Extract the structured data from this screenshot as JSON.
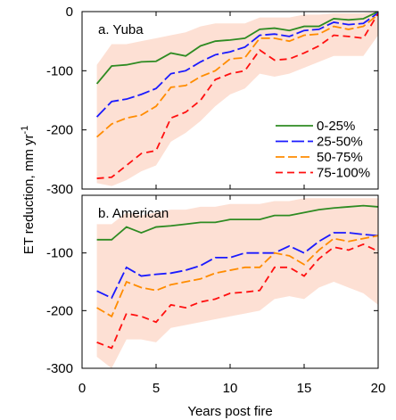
{
  "ylabel": "ET reduction, mm yr",
  "ylabel_exponent": "-1",
  "chart_data": [
    {
      "type": "line",
      "title": "a. Yuba",
      "x": [
        1,
        2,
        3,
        4,
        5,
        6,
        7,
        8,
        9,
        10,
        11,
        12,
        13,
        14,
        15,
        16,
        17,
        18,
        19,
        20
      ],
      "xlim": [
        0,
        20
      ],
      "ylim": [
        -300,
        0
      ],
      "yticks": [
        0,
        -100,
        -200,
        -300
      ],
      "band": {
        "color": "#fde0d4",
        "lower": [
          -290,
          -295,
          -285,
          -270,
          -260,
          -220,
          -205,
          -185,
          -160,
          -140,
          -130,
          -105,
          -110,
          -105,
          -95,
          -85,
          -75,
          -75,
          -75,
          -40
        ],
        "upper": [
          -90,
          -55,
          -55,
          -50,
          -45,
          -40,
          -35,
          -25,
          -20,
          -20,
          -20,
          -10,
          -10,
          -10,
          -5,
          -5,
          -3,
          -3,
          -3,
          0
        ]
      },
      "legend": "right",
      "series": [
        {
          "name": "0-25%",
          "color": "#2e8b22",
          "dash": "none",
          "values": [
            -122,
            -92,
            -90,
            -85,
            -84,
            -70,
            -75,
            -58,
            -50,
            -48,
            -45,
            -30,
            -28,
            -32,
            -25,
            -25,
            -12,
            -14,
            -12,
            0
          ]
        },
        {
          "name": "25-50%",
          "color": "#1a1aff",
          "dash": "14 4",
          "values": [
            -178,
            -152,
            -148,
            -140,
            -130,
            -105,
            -100,
            -85,
            -73,
            -68,
            -60,
            -40,
            -38,
            -42,
            -32,
            -30,
            -18,
            -22,
            -20,
            -2
          ]
        },
        {
          "name": "50-75%",
          "color": "#ff8c00",
          "dash": "10 4",
          "values": [
            -212,
            -190,
            -180,
            -175,
            -160,
            -128,
            -125,
            -110,
            -100,
            -80,
            -78,
            -45,
            -45,
            -50,
            -40,
            -38,
            -25,
            -30,
            -25,
            -5
          ]
        },
        {
          "name": "75-100%",
          "color": "#ff1010",
          "dash": "8 5",
          "values": [
            -282,
            -280,
            -260,
            -240,
            -235,
            -180,
            -170,
            -150,
            -115,
            -105,
            -100,
            -65,
            -82,
            -80,
            -70,
            -58,
            -40,
            -42,
            -45,
            -3
          ]
        }
      ]
    },
    {
      "type": "line",
      "title": "b. American",
      "xlabel": "Years post fire",
      "x": [
        1,
        2,
        3,
        4,
        5,
        6,
        7,
        8,
        9,
        10,
        11,
        12,
        13,
        14,
        15,
        16,
        17,
        18,
        19,
        20
      ],
      "xlim": [
        0,
        20
      ],
      "xticks": [
        0,
        5,
        10,
        15,
        20
      ],
      "ylim": [
        -300,
        0
      ],
      "yticks": [
        -100,
        -200,
        -300
      ],
      "band": {
        "color": "#fde0d4",
        "lower": [
          -280,
          -300,
          -250,
          -250,
          -255,
          -230,
          -225,
          -220,
          -215,
          -210,
          -205,
          -200,
          -180,
          -175,
          -180,
          -160,
          -150,
          -160,
          -170,
          -190
        ],
        "upper": [
          -50,
          -50,
          -30,
          -35,
          -30,
          -25,
          -25,
          -20,
          -20,
          -15,
          -15,
          -15,
          -10,
          -10,
          -5,
          -5,
          -5,
          -5,
          -5,
          -5
        ]
      },
      "series": [
        {
          "name": "0-25%",
          "color": "#2e8b22",
          "dash": "none",
          "values": [
            -77,
            -77,
            -55,
            -65,
            -55,
            -53,
            -50,
            -47,
            -47,
            -42,
            -42,
            -42,
            -35,
            -35,
            -30,
            -25,
            -22,
            -20,
            -18,
            -20
          ]
        },
        {
          "name": "25-50%",
          "color": "#1a1aff",
          "dash": "14 4",
          "values": [
            -166,
            -178,
            -125,
            -140,
            -137,
            -135,
            -130,
            -122,
            -108,
            -108,
            -100,
            -100,
            -100,
            -88,
            -100,
            -80,
            -65,
            -65,
            -68,
            -70
          ]
        },
        {
          "name": "50-75%",
          "color": "#ff8c00",
          "dash": "10 4",
          "values": [
            -195,
            -210,
            -150,
            -160,
            -165,
            -155,
            -150,
            -145,
            -135,
            -130,
            -125,
            -125,
            -100,
            -105,
            -120,
            -95,
            -75,
            -80,
            -75,
            -70
          ]
        },
        {
          "name": "75-100%",
          "color": "#ff1010",
          "dash": "8 5",
          "values": [
            -255,
            -265,
            -205,
            -210,
            -220,
            -190,
            -195,
            -185,
            -180,
            -170,
            -168,
            -165,
            -125,
            -125,
            -140,
            -110,
            -90,
            -95,
            -85,
            -97
          ]
        }
      ]
    }
  ]
}
